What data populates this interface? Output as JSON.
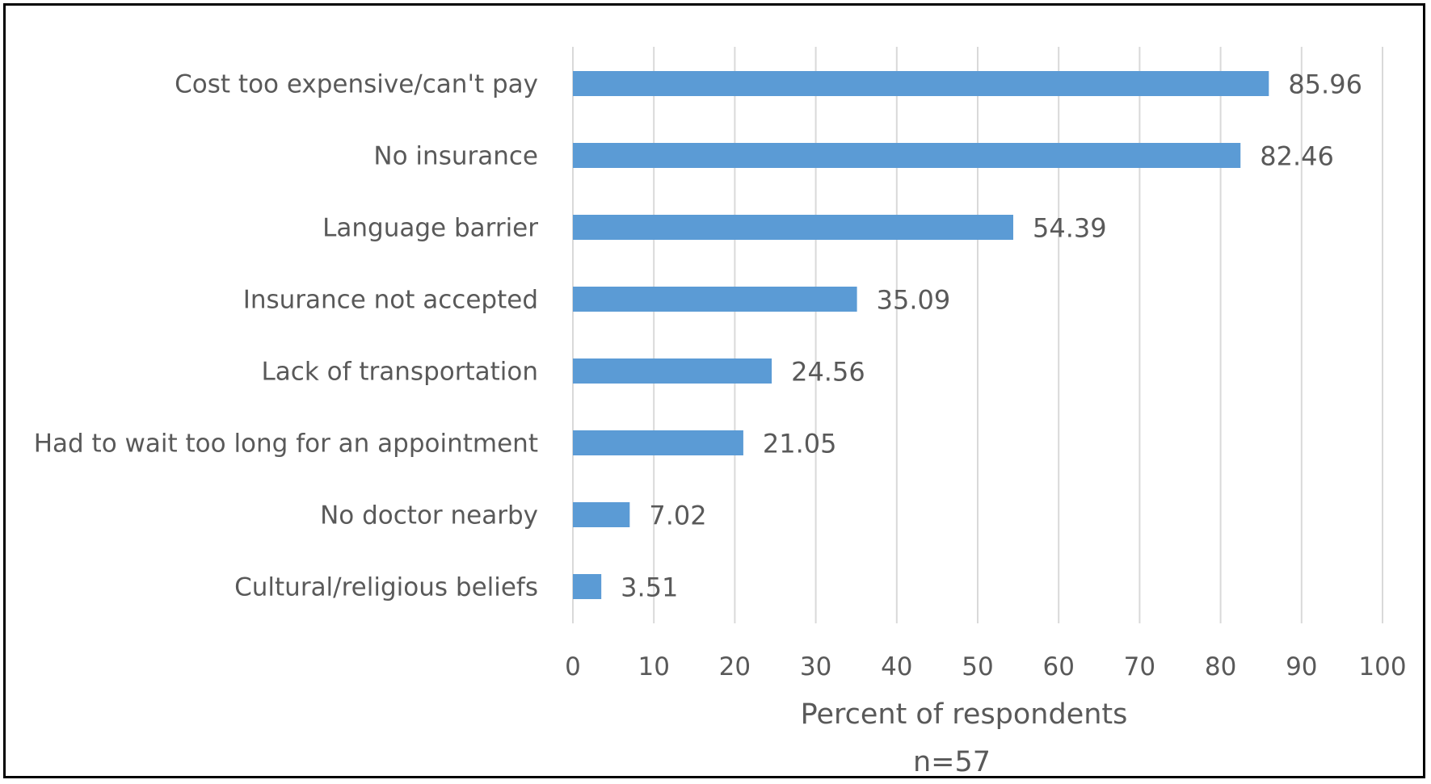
{
  "chart_data": {
    "type": "bar",
    "orientation": "horizontal",
    "categories": [
      "Cost too expensive/can't pay",
      "No insurance",
      "Language barrier",
      "Insurance not accepted",
      "Lack of transportation",
      "Had to wait too long for an appointment",
      "No doctor nearby",
      "Cultural/religious  beliefs"
    ],
    "values": [
      85.96,
      82.46,
      54.39,
      35.09,
      24.56,
      21.05,
      7.02,
      3.51
    ],
    "value_labels": [
      "85.96",
      "82.46",
      "54.39",
      "35.09",
      "24.56",
      "21.05",
      "7.02",
      "3.51"
    ],
    "xlabel": "Percent of respondents",
    "note": "n=57",
    "xlim": [
      0,
      100
    ],
    "xticks": [
      "0",
      "10",
      "20",
      "30",
      "40",
      "50",
      "60",
      "70",
      "80",
      "90",
      "100"
    ],
    "grid": true,
    "legend": "none",
    "bar_color": "#5B9BD5",
    "grid_color": "#D9D9D9",
    "text_color": "#595959"
  }
}
